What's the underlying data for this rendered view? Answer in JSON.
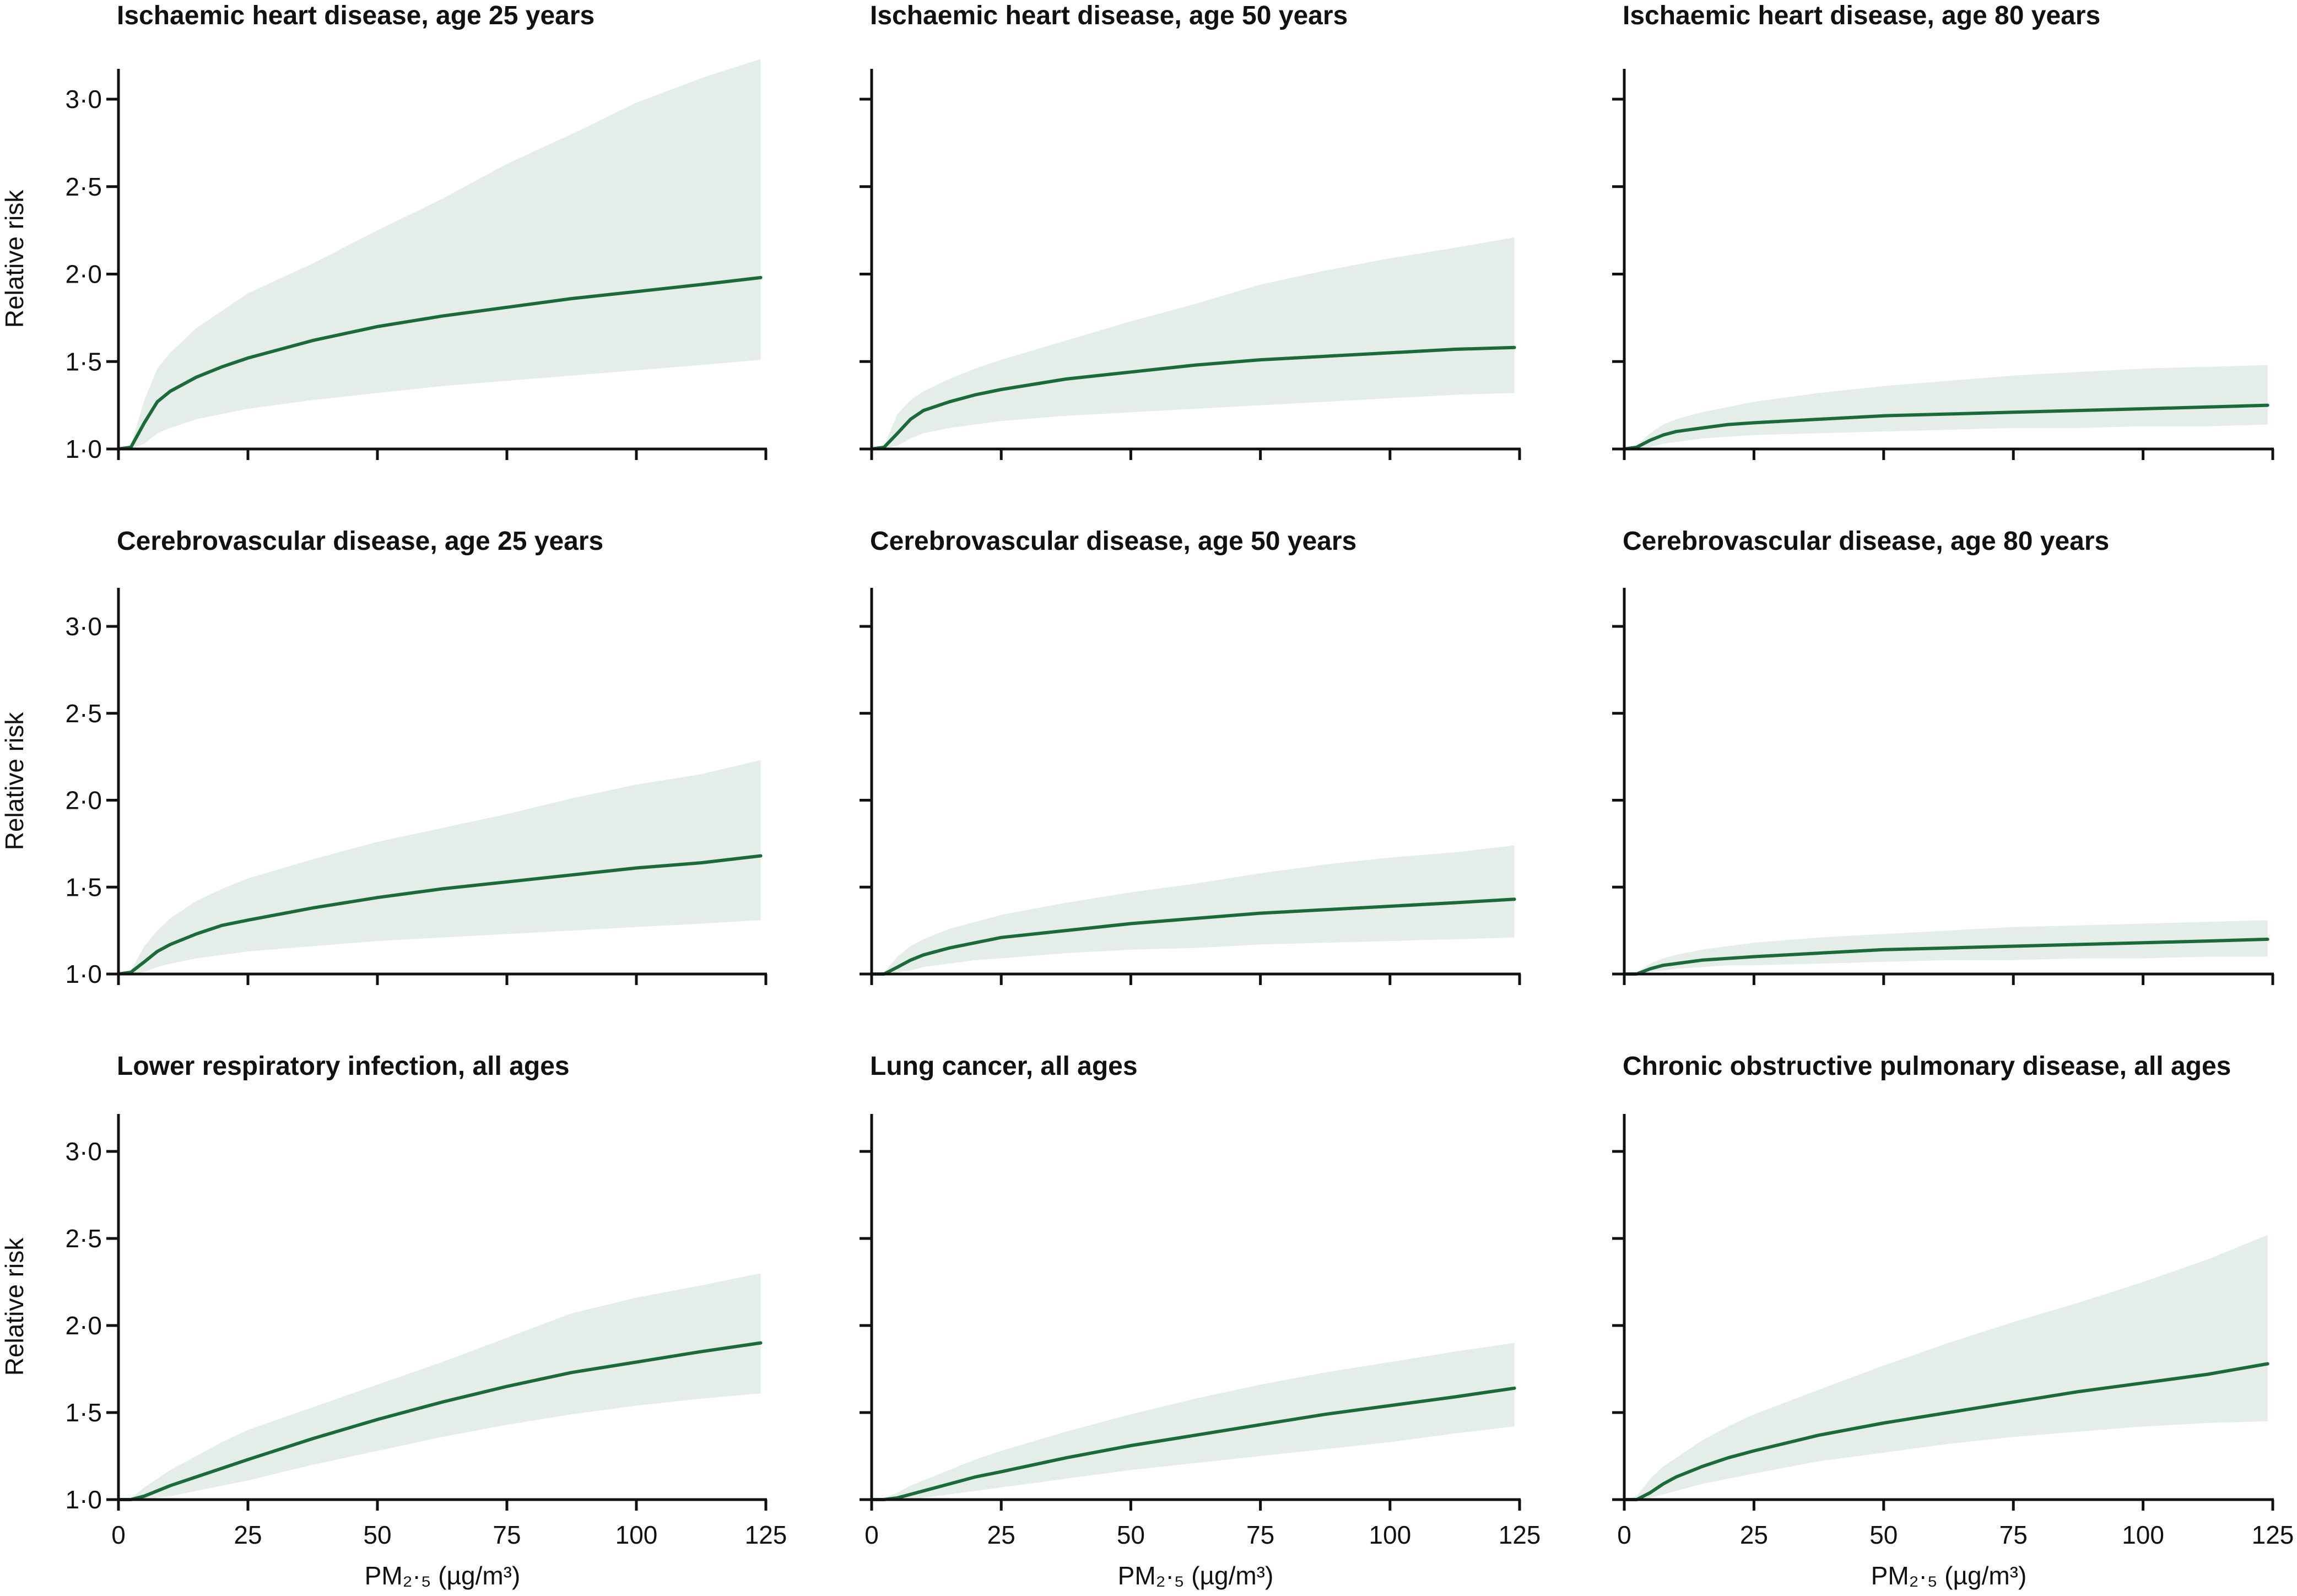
{
  "colors": {
    "line": "#1b6b3a",
    "band": "#e4ede7",
    "axis": "#111111"
  },
  "chart_data": [
    {
      "type": "area",
      "title": "Ischaemic heart disease, age 25 years",
      "xlabel": "",
      "ylabel": "Relative risk",
      "xlim": [
        0,
        125
      ],
      "ylim": [
        1.0,
        3.2
      ],
      "xticks": [
        0,
        25,
        50,
        75,
        100,
        125
      ],
      "yticks": [
        1.0,
        1.5,
        2.0,
        2.5,
        3.0
      ],
      "x": [
        0,
        2.4,
        5,
        7.5,
        10,
        15,
        20,
        25,
        37.5,
        50,
        62.5,
        75,
        87.5,
        100,
        112.5,
        124
      ],
      "series": [
        {
          "values": [
            1.0,
            1.01,
            1.15,
            1.27,
            1.33,
            1.41,
            1.47,
            1.52,
            1.62,
            1.7,
            1.76,
            1.81,
            1.86,
            1.9,
            1.94,
            1.98
          ]
        }
      ],
      "ci_lower": [
        1.0,
        1.0,
        1.03,
        1.09,
        1.12,
        1.17,
        1.2,
        1.23,
        1.28,
        1.32,
        1.36,
        1.39,
        1.42,
        1.45,
        1.48,
        1.51
      ],
      "ci_upper": [
        1.0,
        1.02,
        1.28,
        1.46,
        1.55,
        1.69,
        1.79,
        1.89,
        2.06,
        2.25,
        2.43,
        2.63,
        2.8,
        2.98,
        3.12,
        3.23
      ]
    },
    {
      "type": "area",
      "title": "Ischaemic heart disease, age 50 years",
      "xlabel": "",
      "ylabel": "",
      "xlim": [
        0,
        125
      ],
      "ylim": [
        1.0,
        3.2
      ],
      "xticks": [
        0,
        25,
        50,
        75,
        100,
        125
      ],
      "yticks": [
        1.0,
        1.5,
        2.0,
        2.5,
        3.0
      ],
      "x": [
        0,
        2.4,
        5,
        7.5,
        10,
        15,
        20,
        25,
        37.5,
        50,
        62.5,
        75,
        87.5,
        100,
        112.5,
        124
      ],
      "series": [
        {
          "values": [
            1.0,
            1.01,
            1.09,
            1.17,
            1.22,
            1.27,
            1.31,
            1.34,
            1.4,
            1.44,
            1.48,
            1.51,
            1.53,
            1.55,
            1.57,
            1.58
          ]
        }
      ],
      "ci_lower": [
        1.0,
        1.0,
        1.02,
        1.06,
        1.09,
        1.12,
        1.14,
        1.16,
        1.19,
        1.21,
        1.23,
        1.25,
        1.27,
        1.29,
        1.31,
        1.32
      ],
      "ci_upper": [
        1.0,
        1.02,
        1.2,
        1.28,
        1.33,
        1.4,
        1.46,
        1.51,
        1.62,
        1.73,
        1.83,
        1.94,
        2.02,
        2.09,
        2.15,
        2.21
      ]
    },
    {
      "type": "area",
      "title": "Ischaemic heart disease, age 80 years",
      "xlabel": "",
      "ylabel": "",
      "xlim": [
        0,
        125
      ],
      "ylim": [
        1.0,
        3.2
      ],
      "xticks": [
        0,
        25,
        50,
        75,
        100,
        125
      ],
      "yticks": [
        1.0,
        1.5,
        2.0,
        2.5,
        3.0
      ],
      "x": [
        0,
        2.4,
        5,
        7.5,
        10,
        15,
        20,
        25,
        37.5,
        50,
        62.5,
        75,
        87.5,
        100,
        112.5,
        124
      ],
      "series": [
        {
          "values": [
            1.0,
            1.01,
            1.05,
            1.08,
            1.1,
            1.12,
            1.14,
            1.15,
            1.17,
            1.19,
            1.2,
            1.21,
            1.22,
            1.23,
            1.24,
            1.25
          ]
        }
      ],
      "ci_lower": [
        1.0,
        1.0,
        1.01,
        1.03,
        1.04,
        1.06,
        1.07,
        1.08,
        1.09,
        1.1,
        1.11,
        1.12,
        1.12,
        1.13,
        1.13,
        1.14
      ],
      "ci_upper": [
        1.0,
        1.02,
        1.09,
        1.14,
        1.17,
        1.21,
        1.24,
        1.27,
        1.32,
        1.36,
        1.39,
        1.42,
        1.44,
        1.46,
        1.47,
        1.48
      ]
    },
    {
      "type": "area",
      "title": "Cerebrovascular disease, age 25 years",
      "xlabel": "",
      "ylabel": "Relative risk",
      "xlim": [
        0,
        125
      ],
      "ylim": [
        1.0,
        3.2
      ],
      "xticks": [
        0,
        25,
        50,
        75,
        100,
        125
      ],
      "yticks": [
        1.0,
        1.5,
        2.0,
        2.5,
        3.0
      ],
      "x": [
        0,
        2.4,
        5,
        7.5,
        10,
        15,
        20,
        25,
        37.5,
        50,
        62.5,
        75,
        87.5,
        100,
        112.5,
        124
      ],
      "series": [
        {
          "values": [
            1.0,
            1.01,
            1.07,
            1.13,
            1.17,
            1.23,
            1.28,
            1.31,
            1.38,
            1.44,
            1.49,
            1.53,
            1.57,
            1.61,
            1.64,
            1.68
          ]
        }
      ],
      "ci_lower": [
        1.0,
        1.0,
        1.01,
        1.04,
        1.06,
        1.09,
        1.11,
        1.13,
        1.16,
        1.19,
        1.21,
        1.23,
        1.25,
        1.27,
        1.29,
        1.31
      ],
      "ci_upper": [
        1.0,
        1.02,
        1.16,
        1.25,
        1.32,
        1.42,
        1.49,
        1.55,
        1.66,
        1.76,
        1.84,
        1.92,
        2.01,
        2.09,
        2.15,
        2.23
      ]
    },
    {
      "type": "area",
      "title": "Cerebrovascular disease, age 50 years",
      "xlabel": "",
      "ylabel": "",
      "xlim": [
        0,
        125
      ],
      "ylim": [
        1.0,
        3.2
      ],
      "xticks": [
        0,
        25,
        50,
        75,
        100,
        125
      ],
      "yticks": [
        1.0,
        1.5,
        2.0,
        2.5,
        3.0
      ],
      "x": [
        0,
        2.4,
        5,
        7.5,
        10,
        15,
        20,
        25,
        37.5,
        50,
        62.5,
        75,
        87.5,
        100,
        112.5,
        124
      ],
      "series": [
        {
          "values": [
            1.0,
            1.0,
            1.04,
            1.08,
            1.11,
            1.15,
            1.18,
            1.21,
            1.25,
            1.29,
            1.32,
            1.35,
            1.37,
            1.39,
            1.41,
            1.43
          ]
        }
      ],
      "ci_lower": [
        1.0,
        1.0,
        1.01,
        1.02,
        1.04,
        1.06,
        1.08,
        1.09,
        1.12,
        1.14,
        1.15,
        1.17,
        1.18,
        1.19,
        1.2,
        1.21
      ],
      "ci_upper": [
        1.0,
        1.01,
        1.1,
        1.16,
        1.2,
        1.26,
        1.3,
        1.34,
        1.41,
        1.47,
        1.52,
        1.58,
        1.63,
        1.67,
        1.7,
        1.74
      ]
    },
    {
      "type": "area",
      "title": "Cerebrovascular disease, age 80 years",
      "xlabel": "",
      "ylabel": "",
      "xlim": [
        0,
        125
      ],
      "ylim": [
        1.0,
        3.2
      ],
      "xticks": [
        0,
        25,
        50,
        75,
        100,
        125
      ],
      "yticks": [
        1.0,
        1.5,
        2.0,
        2.5,
        3.0
      ],
      "x": [
        0,
        2.4,
        5,
        7.5,
        10,
        15,
        20,
        25,
        37.5,
        50,
        62.5,
        75,
        87.5,
        100,
        112.5,
        124
      ],
      "series": [
        {
          "values": [
            1.0,
            1.0,
            1.03,
            1.05,
            1.06,
            1.08,
            1.09,
            1.1,
            1.12,
            1.14,
            1.15,
            1.16,
            1.17,
            1.18,
            1.19,
            1.2
          ]
        }
      ],
      "ci_lower": [
        1.0,
        1.0,
        1.01,
        1.02,
        1.03,
        1.04,
        1.05,
        1.05,
        1.06,
        1.07,
        1.08,
        1.08,
        1.09,
        1.09,
        1.1,
        1.1
      ],
      "ci_upper": [
        1.0,
        1.01,
        1.06,
        1.09,
        1.11,
        1.14,
        1.16,
        1.18,
        1.21,
        1.23,
        1.25,
        1.27,
        1.28,
        1.29,
        1.3,
        1.31
      ]
    },
    {
      "type": "area",
      "title": "Lower respiratory infection, all ages",
      "xlabel": "PM₂·₅ (µg/m³)",
      "ylabel": "Relative risk",
      "xlim": [
        0,
        125
      ],
      "ylim": [
        1.0,
        3.2
      ],
      "xticks": [
        0,
        25,
        50,
        75,
        100,
        125
      ],
      "yticks": [
        1.0,
        1.5,
        2.0,
        2.5,
        3.0
      ],
      "x": [
        0,
        2.4,
        5,
        7.5,
        10,
        15,
        20,
        25,
        37.5,
        50,
        62.5,
        75,
        87.5,
        100,
        112.5,
        124
      ],
      "series": [
        {
          "values": [
            1.0,
            1.0,
            1.02,
            1.05,
            1.08,
            1.13,
            1.18,
            1.23,
            1.35,
            1.46,
            1.56,
            1.65,
            1.73,
            1.79,
            1.85,
            1.9
          ]
        }
      ],
      "ci_lower": [
        1.0,
        1.0,
        1.0,
        1.01,
        1.02,
        1.05,
        1.08,
        1.11,
        1.2,
        1.28,
        1.36,
        1.43,
        1.49,
        1.54,
        1.58,
        1.61
      ],
      "ci_upper": [
        1.0,
        1.01,
        1.07,
        1.12,
        1.17,
        1.25,
        1.33,
        1.4,
        1.53,
        1.66,
        1.79,
        1.93,
        2.07,
        2.16,
        2.23,
        2.3
      ]
    },
    {
      "type": "area",
      "title": "Lung cancer, all ages",
      "xlabel": "PM₂·₅ (µg/m³)",
      "ylabel": "",
      "xlim": [
        0,
        125
      ],
      "ylim": [
        1.0,
        3.2
      ],
      "xticks": [
        0,
        25,
        50,
        75,
        100,
        125
      ],
      "yticks": [
        1.0,
        1.5,
        2.0,
        2.5,
        3.0
      ],
      "x": [
        0,
        2.4,
        5,
        7.5,
        10,
        15,
        20,
        25,
        37.5,
        50,
        62.5,
        75,
        87.5,
        100,
        112.5,
        124
      ],
      "series": [
        {
          "values": [
            1.0,
            1.0,
            1.01,
            1.03,
            1.05,
            1.09,
            1.13,
            1.16,
            1.24,
            1.31,
            1.37,
            1.43,
            1.49,
            1.54,
            1.59,
            1.64
          ]
        }
      ],
      "ci_lower": [
        1.0,
        1.0,
        1.0,
        1.0,
        1.01,
        1.03,
        1.05,
        1.07,
        1.12,
        1.17,
        1.21,
        1.25,
        1.29,
        1.33,
        1.38,
        1.42
      ],
      "ci_upper": [
        1.0,
        1.01,
        1.04,
        1.08,
        1.11,
        1.17,
        1.23,
        1.28,
        1.39,
        1.49,
        1.58,
        1.66,
        1.73,
        1.79,
        1.85,
        1.9
      ]
    },
    {
      "type": "area",
      "title": "Chronic obstructive pulmonary disease, all ages",
      "xlabel": "PM₂·₅ (µg/m³)",
      "ylabel": "",
      "xlim": [
        0,
        125
      ],
      "ylim": [
        1.0,
        3.2
      ],
      "xticks": [
        0,
        25,
        50,
        75,
        100,
        125
      ],
      "yticks": [
        1.0,
        1.5,
        2.0,
        2.5,
        3.0
      ],
      "x": [
        0,
        2.4,
        5,
        7.5,
        10,
        15,
        20,
        25,
        37.5,
        50,
        62.5,
        75,
        87.5,
        100,
        112.5,
        124
      ],
      "series": [
        {
          "values": [
            1.0,
            1.0,
            1.04,
            1.09,
            1.13,
            1.19,
            1.24,
            1.28,
            1.37,
            1.44,
            1.5,
            1.56,
            1.62,
            1.67,
            1.72,
            1.78
          ]
        }
      ],
      "ci_lower": [
        1.0,
        1.0,
        1.01,
        1.03,
        1.05,
        1.09,
        1.12,
        1.15,
        1.22,
        1.27,
        1.32,
        1.36,
        1.39,
        1.42,
        1.44,
        1.45
      ],
      "ci_upper": [
        1.0,
        1.02,
        1.12,
        1.19,
        1.24,
        1.34,
        1.42,
        1.49,
        1.63,
        1.77,
        1.9,
        2.02,
        2.13,
        2.25,
        2.38,
        2.52
      ]
    }
  ]
}
